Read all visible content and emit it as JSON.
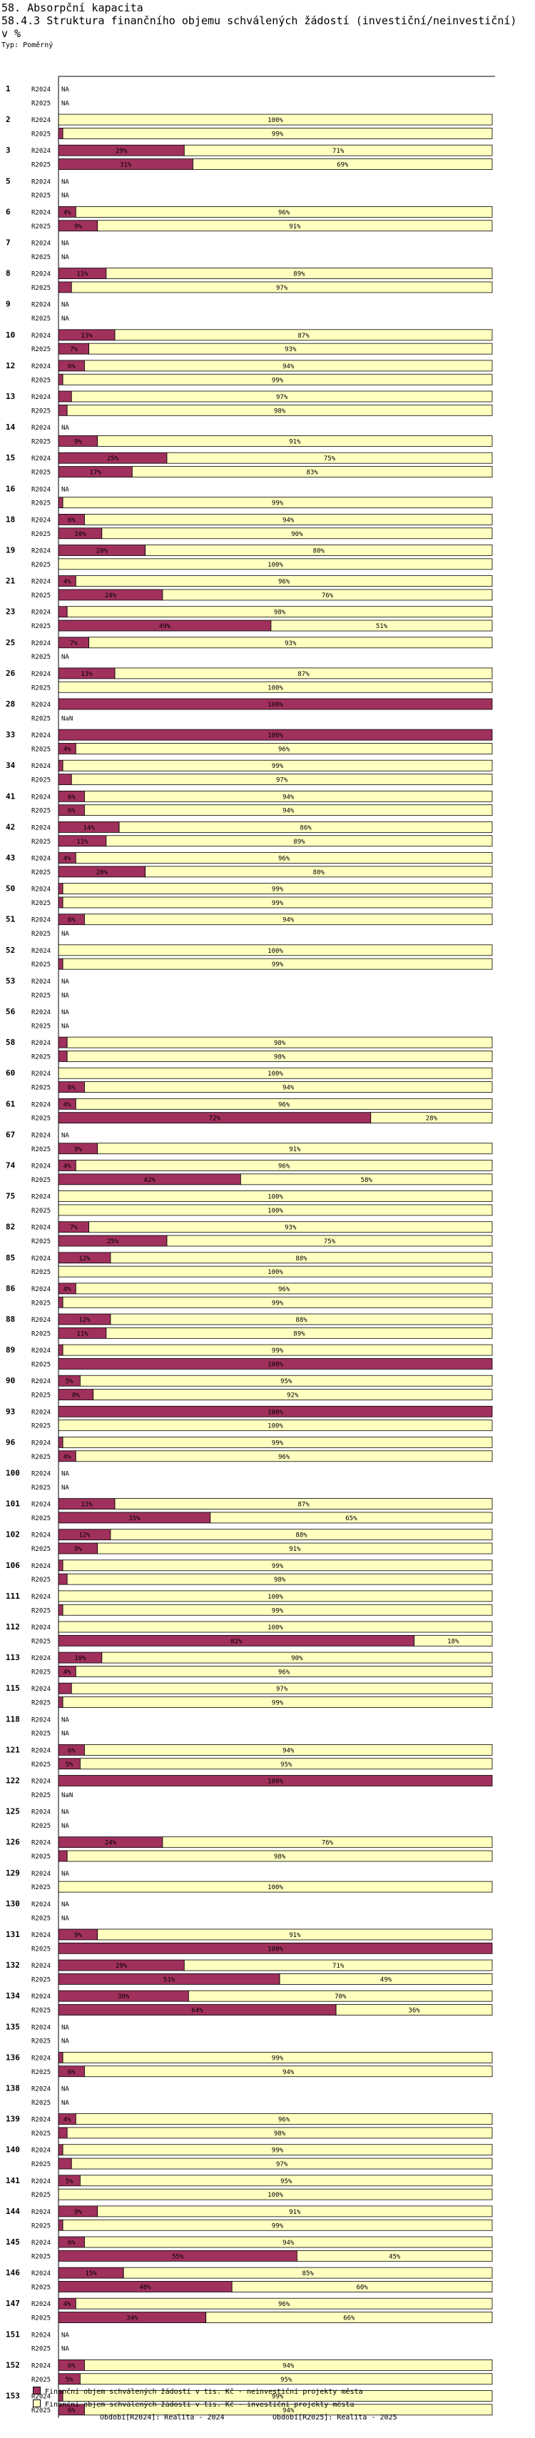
{
  "header": {
    "title": "58. Absorpční kapacita",
    "subtitle": "58.4.3 Struktura finančního objemu schválených žádostí (investiční/neinvestiční)",
    "unit": "v %",
    "type_label": "Typ: Poměrný"
  },
  "legend": {
    "neinvest": "Finanční objem schválených žádostí v tis. Kč - neinvestiční projekty města",
    "invest": "Finanční objem schválených žádostí v tis. Kč - investiční projekty města"
  },
  "footer": {
    "left": "Období[R2024]: Realita - 2024",
    "right": "Období[R2025]: Realita - 2025"
  },
  "colors": {
    "neinvest": "#a0305c",
    "invest": "#ffffc0",
    "axis": "#000000"
  },
  "chart_data": {
    "type": "bar",
    "orientation": "horizontal-stacked-100",
    "title": "58.4.3 Struktura finančního objemu schválených žádostí (investiční/neinvestiční)",
    "unit": "%",
    "xlim": [
      0,
      100
    ],
    "series_names": [
      "neinvestiční projekty města",
      "investiční projekty města"
    ],
    "period_labels": [
      "R2024",
      "R2025"
    ],
    "groups": [
      {
        "id": "1",
        "rows": [
          {
            "p": "R2024",
            "neinv": null,
            "label": "NA"
          },
          {
            "p": "R2025",
            "neinv": null,
            "label": "NA"
          }
        ]
      },
      {
        "id": "2",
        "rows": [
          {
            "p": "R2024",
            "neinv": 0
          },
          {
            "p": "R2025",
            "neinv": 1
          }
        ]
      },
      {
        "id": "3",
        "rows": [
          {
            "p": "R2024",
            "neinv": 29
          },
          {
            "p": "R2025",
            "neinv": 31
          }
        ]
      },
      {
        "id": "5",
        "rows": [
          {
            "p": "R2024",
            "neinv": null,
            "label": "NA"
          },
          {
            "p": "R2025",
            "neinv": null,
            "label": "NA"
          }
        ]
      },
      {
        "id": "6",
        "rows": [
          {
            "p": "R2024",
            "neinv": 4
          },
          {
            "p": "R2025",
            "neinv": 9
          }
        ]
      },
      {
        "id": "7",
        "rows": [
          {
            "p": "R2024",
            "neinv": null,
            "label": "NA"
          },
          {
            "p": "R2025",
            "neinv": null,
            "label": "NA"
          }
        ]
      },
      {
        "id": "8",
        "rows": [
          {
            "p": "R2024",
            "neinv": 11
          },
          {
            "p": "R2025",
            "neinv": 3
          }
        ]
      },
      {
        "id": "9",
        "rows": [
          {
            "p": "R2024",
            "neinv": null,
            "label": "NA"
          },
          {
            "p": "R2025",
            "neinv": null,
            "label": "NA"
          }
        ]
      },
      {
        "id": "10",
        "rows": [
          {
            "p": "R2024",
            "neinv": 13
          },
          {
            "p": "R2025",
            "neinv": 7
          }
        ]
      },
      {
        "id": "12",
        "rows": [
          {
            "p": "R2024",
            "neinv": 6
          },
          {
            "p": "R2025",
            "neinv": 1
          }
        ]
      },
      {
        "id": "13",
        "rows": [
          {
            "p": "R2024",
            "neinv": 3
          },
          {
            "p": "R2025",
            "neinv": 2
          }
        ]
      },
      {
        "id": "14",
        "rows": [
          {
            "p": "R2024",
            "neinv": null,
            "label": "NA"
          },
          {
            "p": "R2025",
            "neinv": 9
          }
        ]
      },
      {
        "id": "15",
        "rows": [
          {
            "p": "R2024",
            "neinv": 25
          },
          {
            "p": "R2025",
            "neinv": 17
          }
        ]
      },
      {
        "id": "16",
        "rows": [
          {
            "p": "R2024",
            "neinv": null,
            "label": "NA"
          },
          {
            "p": "R2025",
            "neinv": 1
          }
        ]
      },
      {
        "id": "18",
        "rows": [
          {
            "p": "R2024",
            "neinv": 6
          },
          {
            "p": "R2025",
            "neinv": 10
          }
        ]
      },
      {
        "id": "19",
        "rows": [
          {
            "p": "R2024",
            "neinv": 20
          },
          {
            "p": "R2025",
            "neinv": 0
          }
        ]
      },
      {
        "id": "21",
        "rows": [
          {
            "p": "R2024",
            "neinv": 4
          },
          {
            "p": "R2025",
            "neinv": 24
          }
        ]
      },
      {
        "id": "23",
        "rows": [
          {
            "p": "R2024",
            "neinv": 2
          },
          {
            "p": "R2025",
            "neinv": 49
          }
        ]
      },
      {
        "id": "25",
        "rows": [
          {
            "p": "R2024",
            "neinv": 7
          },
          {
            "p": "R2025",
            "neinv": null,
            "label": "NA"
          }
        ]
      },
      {
        "id": "26",
        "rows": [
          {
            "p": "R2024",
            "neinv": 13
          },
          {
            "p": "R2025",
            "neinv": 0
          }
        ]
      },
      {
        "id": "28",
        "rows": [
          {
            "p": "R2024",
            "neinv": 100
          },
          {
            "p": "R2025",
            "neinv": null,
            "label": "NaN"
          }
        ]
      },
      {
        "id": "33",
        "rows": [
          {
            "p": "R2024",
            "neinv": 100
          },
          {
            "p": "R2025",
            "neinv": 4
          }
        ]
      },
      {
        "id": "34",
        "rows": [
          {
            "p": "R2024",
            "neinv": 1
          },
          {
            "p": "R2025",
            "neinv": 3
          }
        ]
      },
      {
        "id": "41",
        "rows": [
          {
            "p": "R2024",
            "neinv": 6
          },
          {
            "p": "R2025",
            "neinv": 6
          }
        ]
      },
      {
        "id": "42",
        "rows": [
          {
            "p": "R2024",
            "neinv": 14
          },
          {
            "p": "R2025",
            "neinv": 11
          }
        ]
      },
      {
        "id": "43",
        "rows": [
          {
            "p": "R2024",
            "neinv": 4
          },
          {
            "p": "R2025",
            "neinv": 20
          }
        ]
      },
      {
        "id": "50",
        "rows": [
          {
            "p": "R2024",
            "neinv": 1
          },
          {
            "p": "R2025",
            "neinv": 1
          }
        ]
      },
      {
        "id": "51",
        "rows": [
          {
            "p": "R2024",
            "neinv": 6
          },
          {
            "p": "R2025",
            "neinv": null,
            "label": "NA"
          }
        ]
      },
      {
        "id": "52",
        "rows": [
          {
            "p": "R2024",
            "neinv": 0
          },
          {
            "p": "R2025",
            "neinv": 1
          }
        ]
      },
      {
        "id": "53",
        "rows": [
          {
            "p": "R2024",
            "neinv": null,
            "label": "NA"
          },
          {
            "p": "R2025",
            "neinv": null,
            "label": "NA"
          }
        ]
      },
      {
        "id": "56",
        "rows": [
          {
            "p": "R2024",
            "neinv": null,
            "label": "NA"
          },
          {
            "p": "R2025",
            "neinv": null,
            "label": "NA"
          }
        ]
      },
      {
        "id": "58",
        "rows": [
          {
            "p": "R2024",
            "neinv": 2
          },
          {
            "p": "R2025",
            "neinv": 2
          }
        ]
      },
      {
        "id": "60",
        "rows": [
          {
            "p": "R2024",
            "neinv": 0
          },
          {
            "p": "R2025",
            "neinv": 6
          }
        ]
      },
      {
        "id": "61",
        "rows": [
          {
            "p": "R2024",
            "neinv": 4
          },
          {
            "p": "R2025",
            "neinv": 72
          }
        ]
      },
      {
        "id": "67",
        "rows": [
          {
            "p": "R2024",
            "neinv": null,
            "label": "NA"
          },
          {
            "p": "R2025",
            "neinv": 9
          }
        ]
      },
      {
        "id": "74",
        "rows": [
          {
            "p": "R2024",
            "neinv": 4
          },
          {
            "p": "R2025",
            "neinv": 42
          }
        ]
      },
      {
        "id": "75",
        "rows": [
          {
            "p": "R2024",
            "neinv": 0
          },
          {
            "p": "R2025",
            "neinv": 0
          }
        ]
      },
      {
        "id": "82",
        "rows": [
          {
            "p": "R2024",
            "neinv": 7
          },
          {
            "p": "R2025",
            "neinv": 25
          }
        ]
      },
      {
        "id": "85",
        "rows": [
          {
            "p": "R2024",
            "neinv": 12
          },
          {
            "p": "R2025",
            "neinv": 0
          }
        ]
      },
      {
        "id": "86",
        "rows": [
          {
            "p": "R2024",
            "neinv": 4
          },
          {
            "p": "R2025",
            "neinv": 1
          }
        ]
      },
      {
        "id": "88",
        "rows": [
          {
            "p": "R2024",
            "neinv": 12
          },
          {
            "p": "R2025",
            "neinv": 11
          }
        ]
      },
      {
        "id": "89",
        "rows": [
          {
            "p": "R2024",
            "neinv": 1
          },
          {
            "p": "R2025",
            "neinv": 100
          }
        ]
      },
      {
        "id": "90",
        "rows": [
          {
            "p": "R2024",
            "neinv": 5
          },
          {
            "p": "R2025",
            "neinv": 8
          }
        ]
      },
      {
        "id": "93",
        "rows": [
          {
            "p": "R2024",
            "neinv": 100
          },
          {
            "p": "R2025",
            "neinv": 0
          }
        ]
      },
      {
        "id": "96",
        "rows": [
          {
            "p": "R2024",
            "neinv": 1
          },
          {
            "p": "R2025",
            "neinv": 4
          }
        ]
      },
      {
        "id": "100",
        "rows": [
          {
            "p": "R2024",
            "neinv": null,
            "label": "NA"
          },
          {
            "p": "R2025",
            "neinv": null,
            "label": "NA"
          }
        ]
      },
      {
        "id": "101",
        "rows": [
          {
            "p": "R2024",
            "neinv": 13
          },
          {
            "p": "R2025",
            "neinv": 35
          }
        ]
      },
      {
        "id": "102",
        "rows": [
          {
            "p": "R2024",
            "neinv": 12
          },
          {
            "p": "R2025",
            "neinv": 9
          }
        ]
      },
      {
        "id": "106",
        "rows": [
          {
            "p": "R2024",
            "neinv": 1
          },
          {
            "p": "R2025",
            "neinv": 2
          }
        ]
      },
      {
        "id": "111",
        "rows": [
          {
            "p": "R2024",
            "neinv": 0
          },
          {
            "p": "R2025",
            "neinv": 1
          }
        ]
      },
      {
        "id": "112",
        "rows": [
          {
            "p": "R2024",
            "neinv": 0
          },
          {
            "p": "R2025",
            "neinv": 82
          }
        ]
      },
      {
        "id": "113",
        "rows": [
          {
            "p": "R2024",
            "neinv": 10
          },
          {
            "p": "R2025",
            "neinv": 4
          }
        ]
      },
      {
        "id": "115",
        "rows": [
          {
            "p": "R2024",
            "neinv": 3
          },
          {
            "p": "R2025",
            "neinv": 1
          }
        ]
      },
      {
        "id": "118",
        "rows": [
          {
            "p": "R2024",
            "neinv": null,
            "label": "NA"
          },
          {
            "p": "R2025",
            "neinv": null,
            "label": "NA"
          }
        ]
      },
      {
        "id": "121",
        "rows": [
          {
            "p": "R2024",
            "neinv": 6
          },
          {
            "p": "R2025",
            "neinv": 5
          }
        ]
      },
      {
        "id": "122",
        "rows": [
          {
            "p": "R2024",
            "neinv": 100
          },
          {
            "p": "R2025",
            "neinv": null,
            "label": "NaN"
          }
        ]
      },
      {
        "id": "125",
        "rows": [
          {
            "p": "R2024",
            "neinv": null,
            "label": "NA"
          },
          {
            "p": "R2025",
            "neinv": null,
            "label": "NA"
          }
        ]
      },
      {
        "id": "126",
        "rows": [
          {
            "p": "R2024",
            "neinv": 24
          },
          {
            "p": "R2025",
            "neinv": 2
          }
        ]
      },
      {
        "id": "129",
        "rows": [
          {
            "p": "R2024",
            "neinv": null,
            "label": "NA"
          },
          {
            "p": "R2025",
            "neinv": 0
          }
        ]
      },
      {
        "id": "130",
        "rows": [
          {
            "p": "R2024",
            "neinv": null,
            "label": "NA"
          },
          {
            "p": "R2025",
            "neinv": null,
            "label": "NA"
          }
        ]
      },
      {
        "id": "131",
        "rows": [
          {
            "p": "R2024",
            "neinv": 9
          },
          {
            "p": "R2025",
            "neinv": 100
          }
        ]
      },
      {
        "id": "132",
        "rows": [
          {
            "p": "R2024",
            "neinv": 29
          },
          {
            "p": "R2025",
            "neinv": 51
          }
        ]
      },
      {
        "id": "134",
        "rows": [
          {
            "p": "R2024",
            "neinv": 30
          },
          {
            "p": "R2025",
            "neinv": 64
          }
        ]
      },
      {
        "id": "135",
        "rows": [
          {
            "p": "R2024",
            "neinv": null,
            "label": "NA"
          },
          {
            "p": "R2025",
            "neinv": null,
            "label": "NA"
          }
        ]
      },
      {
        "id": "136",
        "rows": [
          {
            "p": "R2024",
            "neinv": 1
          },
          {
            "p": "R2025",
            "neinv": 6
          }
        ]
      },
      {
        "id": "138",
        "rows": [
          {
            "p": "R2024",
            "neinv": null,
            "label": "NA"
          },
          {
            "p": "R2025",
            "neinv": null,
            "label": "NA"
          }
        ]
      },
      {
        "id": "139",
        "rows": [
          {
            "p": "R2024",
            "neinv": 4
          },
          {
            "p": "R2025",
            "neinv": 2
          }
        ]
      },
      {
        "id": "140",
        "rows": [
          {
            "p": "R2024",
            "neinv": 1
          },
          {
            "p": "R2025",
            "neinv": 3
          }
        ]
      },
      {
        "id": "141",
        "rows": [
          {
            "p": "R2024",
            "neinv": 5
          },
          {
            "p": "R2025",
            "neinv": 0
          }
        ]
      },
      {
        "id": "144",
        "rows": [
          {
            "p": "R2024",
            "neinv": 9
          },
          {
            "p": "R2025",
            "neinv": 1
          }
        ]
      },
      {
        "id": "145",
        "rows": [
          {
            "p": "R2024",
            "neinv": 6
          },
          {
            "p": "R2025",
            "neinv": 55
          }
        ]
      },
      {
        "id": "146",
        "rows": [
          {
            "p": "R2024",
            "neinv": 15
          },
          {
            "p": "R2025",
            "neinv": 40
          }
        ]
      },
      {
        "id": "147",
        "rows": [
          {
            "p": "R2024",
            "neinv": 4
          },
          {
            "p": "R2025",
            "neinv": 34
          }
        ]
      },
      {
        "id": "151",
        "rows": [
          {
            "p": "R2024",
            "neinv": null,
            "label": "NA"
          },
          {
            "p": "R2025",
            "neinv": null,
            "label": "NA"
          }
        ]
      },
      {
        "id": "152",
        "rows": [
          {
            "p": "R2024",
            "neinv": 6
          },
          {
            "p": "R2025",
            "neinv": 5
          }
        ]
      },
      {
        "id": "153",
        "rows": [
          {
            "p": "R2024",
            "neinv": 1
          },
          {
            "p": "R2025",
            "neinv": 6
          }
        ]
      }
    ]
  }
}
